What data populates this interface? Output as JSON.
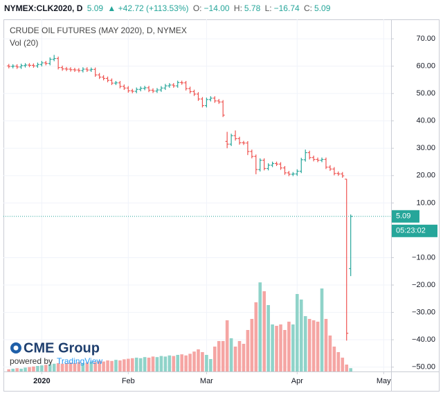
{
  "legend": {
    "symbol": "NYMEX:CLK2020, D",
    "last": "5.09",
    "change": "▲ +42.72 (+113.53%)",
    "o_key": "O:",
    "o": "−14.00",
    "h_key": "H:",
    "h": "5.78",
    "l_key": "L:",
    "l": "−16.74",
    "c_key": "C:",
    "c": "5.09"
  },
  "logo": {
    "brand": "CME Group",
    "powered": "powered by",
    "platform": "TradingView"
  },
  "chart_data": {
    "type": "ohlc",
    "title": "CRUDE OIL FUTURES (MAY 2020), D, NYMEX",
    "volume_title": "Vol (20)",
    "open": [
      60.1,
      59.9,
      60.0,
      59.7,
      60.2,
      60.4,
      60.3,
      60.1,
      60.6,
      61.2,
      61.0,
      62.5,
      62.8,
      59.5,
      59.0,
      58.9,
      58.7,
      58.6,
      58.4,
      58.9,
      58.6,
      58.8,
      56.8,
      56.0,
      55.5,
      54.8,
      53.8,
      53.9,
      52.6,
      52.0,
      51.0,
      50.8,
      51.5,
      51.9,
      52.1,
      51.2,
      50.9,
      51.3,
      52.0,
      52.8,
      53.1,
      52.8,
      54.0,
      53.9,
      51.8,
      50.7,
      49.8,
      48.0,
      45.6,
      47.8,
      48.3,
      47.3,
      46.9,
      32.5,
      31.5,
      34.6,
      33.5,
      32.0,
      31.9,
      28.8,
      27.0,
      22.2,
      25.6,
      22.6,
      23.8,
      24.4,
      24.2,
      22.8,
      21.0,
      20.5,
      20.6,
      21.6,
      25.8,
      28.4,
      26.6,
      25.9,
      25.6,
      25.9,
      23.1,
      22.4,
      20.8,
      20.6,
      18.7,
      -14.0
    ],
    "high": [
      60.8,
      60.7,
      60.7,
      60.9,
      61.1,
      61.1,
      61.0,
      61.3,
      61.9,
      61.9,
      63.2,
      64.1,
      63.5,
      60.2,
      59.7,
      59.6,
      59.4,
      59.3,
      59.6,
      59.6,
      59.5,
      59.5,
      57.5,
      56.7,
      56.2,
      55.5,
      54.6,
      54.6,
      53.3,
      52.7,
      51.7,
      52.2,
      52.6,
      52.8,
      52.8,
      51.9,
      52.0,
      52.7,
      53.5,
      53.8,
      53.8,
      54.7,
      54.7,
      54.6,
      52.5,
      51.4,
      50.5,
      48.7,
      48.5,
      49.0,
      49.0,
      48.0,
      47.6,
      36.0,
      35.3,
      36.5,
      34.2,
      32.7,
      32.6,
      29.5,
      27.7,
      26.3,
      26.3,
      24.5,
      25.1,
      25.1,
      24.9,
      23.5,
      21.7,
      21.3,
      22.3,
      26.5,
      29.5,
      29.1,
      27.3,
      26.6,
      26.6,
      26.6,
      23.8,
      23.1,
      21.5,
      21.3,
      18.8,
      5.78
    ],
    "low": [
      59.2,
      59.2,
      59.0,
      59.0,
      59.5,
      59.6,
      59.4,
      59.4,
      59.9,
      60.3,
      60.3,
      61.8,
      58.8,
      58.3,
      58.2,
      58.0,
      57.9,
      57.7,
      57.7,
      57.9,
      57.9,
      56.1,
      55.3,
      54.8,
      54.1,
      53.1,
      53.1,
      51.9,
      51.3,
      50.3,
      50.1,
      50.1,
      50.8,
      51.2,
      50.5,
      50.2,
      50.2,
      50.6,
      51.3,
      52.1,
      52.1,
      52.1,
      53.2,
      51.1,
      50.0,
      49.1,
      47.3,
      44.9,
      44.9,
      47.1,
      46.6,
      46.2,
      41.4,
      30.0,
      30.8,
      32.8,
      31.3,
      31.2,
      27.5,
      26.3,
      20.5,
      21.5,
      21.9,
      21.9,
      23.1,
      23.5,
      22.1,
      20.3,
      19.8,
      19.8,
      19.9,
      20.9,
      25.1,
      25.9,
      25.2,
      24.9,
      24.9,
      22.4,
      21.7,
      20.1,
      19.9,
      19.2,
      -40.32,
      -16.74
    ],
    "close": [
      59.9,
      60.0,
      59.7,
      60.2,
      60.4,
      60.3,
      60.1,
      60.6,
      61.2,
      61.0,
      62.5,
      62.8,
      59.5,
      59.0,
      58.9,
      58.7,
      58.6,
      58.4,
      58.9,
      58.6,
      58.8,
      56.8,
      56.0,
      55.5,
      54.8,
      53.8,
      53.9,
      52.6,
      52.0,
      51.0,
      50.8,
      51.5,
      51.9,
      52.1,
      51.2,
      50.9,
      51.3,
      52.0,
      52.8,
      53.1,
      52.8,
      54.0,
      53.9,
      51.8,
      50.7,
      49.8,
      48.0,
      45.6,
      47.8,
      48.3,
      47.3,
      46.9,
      42.1,
      31.5,
      34.6,
      33.5,
      32.0,
      31.9,
      28.8,
      27.0,
      22.2,
      25.6,
      22.6,
      23.8,
      24.4,
      24.2,
      22.8,
      21.0,
      20.5,
      20.6,
      21.6,
      25.8,
      28.4,
      26.6,
      25.9,
      25.6,
      25.9,
      23.1,
      22.4,
      20.8,
      20.6,
      19.9,
      -37.63,
      5.09
    ],
    "volume": [
      8,
      10,
      12,
      10,
      14,
      16,
      18,
      20,
      22,
      24,
      26,
      28,
      30,
      28,
      30,
      32,
      30,
      34,
      30,
      32,
      36,
      34,
      38,
      36,
      40,
      38,
      42,
      40,
      44,
      46,
      48,
      50,
      48,
      52,
      50,
      54,
      52,
      56,
      54,
      58,
      56,
      60,
      62,
      58,
      64,
      72,
      80,
      70,
      60,
      45,
      90,
      110,
      110,
      185,
      120,
      90,
      110,
      100,
      150,
      190,
      250,
      322,
      290,
      240,
      170,
      165,
      170,
      150,
      180,
      170,
      280,
      260,
      200,
      190,
      185,
      180,
      300,
      190,
      130,
      90,
      70,
      50,
      25,
      12
    ],
    "last_value_label": "5.09",
    "countdown": "05:23:02",
    "xlim": [
      -1.3,
      92.8
    ],
    "xticks": [
      {
        "value": 8,
        "label": "2020"
      },
      {
        "value": 29,
        "label": "Feb"
      },
      {
        "value": 48,
        "label": "Mar"
      },
      {
        "value": 70,
        "label": "Apr"
      },
      {
        "value": 91,
        "label": "May"
      }
    ],
    "ylim": [
      -51.6,
      77.1
    ],
    "yticks": [
      {
        "value": 70,
        "label": "70.00"
      },
      {
        "value": 60,
        "label": "60.00"
      },
      {
        "value": 50,
        "label": "50.00"
      },
      {
        "value": 40,
        "label": "40.00"
      },
      {
        "value": 30,
        "label": "30.00"
      },
      {
        "value": 20,
        "label": "20.00"
      },
      {
        "value": 10,
        "label": "10.00"
      },
      {
        "value": -10,
        "label": "−10.00"
      },
      {
        "value": -20,
        "label": "−20.00"
      },
      {
        "value": -30,
        "label": "−30.00"
      },
      {
        "value": -40,
        "label": "−40.00"
      },
      {
        "value": -50,
        "label": "−50.00"
      }
    ],
    "volume_lim": [
      0,
      400
    ],
    "grid": true,
    "up_color": "#26a69a",
    "down_color": "#ef5350",
    "volume_up_color": "#8fd3c9",
    "volume_down_color": "#f5a5a3"
  }
}
